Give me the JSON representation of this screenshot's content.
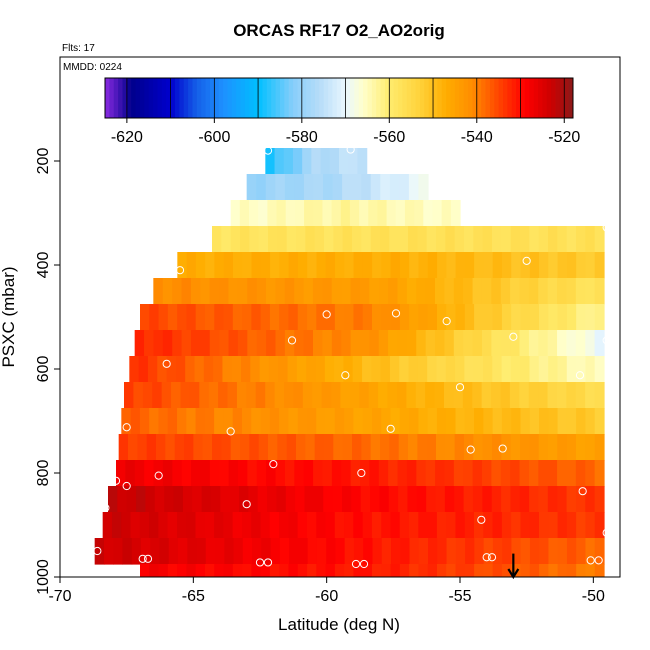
{
  "chart_data": {
    "type": "heatmap",
    "title": "ORCAS RF17 O2_AO2orig",
    "flights_label": "Flts: 17",
    "date_label": "MMDD: 0224",
    "xlabel": "Latitude (deg N)",
    "ylabel": "PSXC (mbar)",
    "xlim": [
      -70,
      -49
    ],
    "ylim": [
      1000,
      0
    ],
    "x_ticks": [
      -70,
      -65,
      -60,
      -55,
      -50
    ],
    "x_tick_labels": [
      "-70",
      "-65",
      "-60",
      "-55",
      "-50"
    ],
    "y_ticks": [
      200,
      400,
      600,
      800,
      1000
    ],
    "y_tick_labels": [
      "200",
      "400",
      "600",
      "800",
      "1000"
    ],
    "colorbar": {
      "range": [
        -625,
        -518
      ],
      "ticks": [
        -620,
        -600,
        -580,
        -560,
        -540,
        -520
      ],
      "tick_labels": [
        "-620",
        "-600",
        "-580",
        "-560",
        "-540",
        "-520"
      ],
      "stops": [
        {
          "v": -625,
          "c": "#8a2be2"
        },
        {
          "v": -619,
          "c": "#00008b"
        },
        {
          "v": -610,
          "c": "#0000cd"
        },
        {
          "v": -604,
          "c": "#1560e8"
        },
        {
          "v": -598,
          "c": "#1e90ff"
        },
        {
          "v": -590,
          "c": "#00bfff"
        },
        {
          "v": -582,
          "c": "#87cefa"
        },
        {
          "v": -576,
          "c": "#b6dcf8"
        },
        {
          "v": -570,
          "c": "#e9f7ff"
        },
        {
          "v": -566,
          "c": "#ffffcc"
        },
        {
          "v": -560,
          "c": "#ffec6e"
        },
        {
          "v": -553,
          "c": "#ffd23a"
        },
        {
          "v": -547,
          "c": "#ffad00"
        },
        {
          "v": -541,
          "c": "#ff8c00"
        },
        {
          "v": -535,
          "c": "#ff4500"
        },
        {
          "v": -529,
          "c": "#ff0000"
        },
        {
          "v": -523,
          "c": "#cc0000"
        },
        {
          "v": -518,
          "c": "#8b1a1a"
        }
      ]
    },
    "rows": [
      {
        "p_top": 175,
        "p_bot": 225,
        "x_start": -62.3,
        "x_end": -58.5,
        "v_start": -590,
        "v_mid": -577,
        "v_end": -574
      },
      {
        "p_top": 225,
        "p_bot": 275,
        "x_start": -63.0,
        "x_end": -56.2,
        "v_start": -580,
        "v_mid": -577,
        "v_end": -569
      },
      {
        "p_top": 275,
        "p_bot": 325,
        "x_start": -63.6,
        "x_end": -55.0,
        "v_start": -566,
        "v_mid": -563,
        "v_end": -566
      },
      {
        "p_top": 325,
        "p_bot": 375,
        "x_start": -64.3,
        "x_end": -49.6,
        "v_start": -558,
        "v_mid": -557,
        "v_end": -557
      },
      {
        "p_top": 375,
        "p_bot": 425,
        "x_start": -65.6,
        "x_end": -49.6,
        "v_start": -547,
        "v_mid": -547,
        "v_end": -552
      },
      {
        "p_top": 425,
        "p_bot": 475,
        "x_start": -66.5,
        "x_end": -49.6,
        "v_start": -541,
        "v_mid": -544,
        "v_end": -558
      },
      {
        "p_top": 475,
        "p_bot": 525,
        "x_start": -67.0,
        "x_end": -49.6,
        "v_start": -535,
        "v_mid": -540,
        "v_end": -563
      },
      {
        "p_top": 525,
        "p_bot": 575,
        "x_start": -67.2,
        "x_end": -49.6,
        "v_start": -532,
        "v_mid": -542,
        "v_end": -570
      },
      {
        "p_top": 575,
        "p_bot": 625,
        "x_start": -67.4,
        "x_end": -49.6,
        "v_start": -533,
        "v_mid": -549,
        "v_end": -566
      },
      {
        "p_top": 625,
        "p_bot": 675,
        "x_start": -67.6,
        "x_end": -49.6,
        "v_start": -534,
        "v_mid": -545,
        "v_end": -556
      },
      {
        "p_top": 675,
        "p_bot": 725,
        "x_start": -67.7,
        "x_end": -49.6,
        "v_start": -537,
        "v_mid": -545,
        "v_end": -552
      },
      {
        "p_top": 725,
        "p_bot": 775,
        "x_start": -67.8,
        "x_end": -49.6,
        "v_start": -534,
        "v_mid": -538,
        "v_end": -545
      },
      {
        "p_top": 775,
        "p_bot": 825,
        "x_start": -67.9,
        "x_end": -49.6,
        "v_start": -527,
        "v_mid": -531,
        "v_end": -538
      },
      {
        "p_top": 825,
        "p_bot": 875,
        "x_start": -68.2,
        "x_end": -49.6,
        "v_start": -522,
        "v_mid": -529,
        "v_end": -534
      },
      {
        "p_top": 875,
        "p_bot": 925,
        "x_start": -68.4,
        "x_end": -49.6,
        "v_start": -523,
        "v_mid": -530,
        "v_end": -534
      },
      {
        "p_top": 925,
        "p_bot": 975,
        "x_start": -68.7,
        "x_end": -49.6,
        "v_start": -523,
        "v_mid": -530,
        "v_end": -538
      },
      {
        "p_top": 975,
        "p_bot": 1000,
        "x_start": -67.0,
        "x_end": -49.6,
        "v_start": -528,
        "v_mid": -531,
        "v_end": -540
      }
    ],
    "points": [
      {
        "x": -62.2,
        "p": 180
      },
      {
        "x": -59.1,
        "p": 178
      },
      {
        "x": -56.0,
        "p": 178
      },
      {
        "x": -49.5,
        "p": 328
      },
      {
        "x": -52.5,
        "p": 392
      },
      {
        "x": -65.5,
        "p": 410
      },
      {
        "x": -67.0,
        "p": 465
      },
      {
        "x": -60.0,
        "p": 495
      },
      {
        "x": -57.4,
        "p": 493
      },
      {
        "x": -55.5,
        "p": 508
      },
      {
        "x": -61.3,
        "p": 545
      },
      {
        "x": -53.0,
        "p": 538
      },
      {
        "x": -49.5,
        "p": 545
      },
      {
        "x": -67.7,
        "p": 590
      },
      {
        "x": -66.0,
        "p": 590
      },
      {
        "x": -59.3,
        "p": 612
      },
      {
        "x": -55.0,
        "p": 635
      },
      {
        "x": -50.5,
        "p": 612
      },
      {
        "x": -67.5,
        "p": 712
      },
      {
        "x": -63.6,
        "p": 720
      },
      {
        "x": -57.6,
        "p": 715
      },
      {
        "x": -54.6,
        "p": 755
      },
      {
        "x": -53.4,
        "p": 753
      },
      {
        "x": -62.0,
        "p": 783
      },
      {
        "x": -66.3,
        "p": 805
      },
      {
        "x": -58.7,
        "p": 800
      },
      {
        "x": -67.9,
        "p": 815
      },
      {
        "x": -67.5,
        "p": 825
      },
      {
        "x": -50.4,
        "p": 835
      },
      {
        "x": -68.3,
        "p": 867
      },
      {
        "x": -63.0,
        "p": 860
      },
      {
        "x": -54.2,
        "p": 890
      },
      {
        "x": -49.5,
        "p": 915
      },
      {
        "x": -68.6,
        "p": 950
      },
      {
        "x": -66.9,
        "p": 965
      },
      {
        "x": -66.7,
        "p": 965
      },
      {
        "x": -62.5,
        "p": 972
      },
      {
        "x": -62.2,
        "p": 972
      },
      {
        "x": -58.9,
        "p": 975
      },
      {
        "x": -58.6,
        "p": 975
      },
      {
        "x": -54.0,
        "p": 962
      },
      {
        "x": -53.8,
        "p": 962
      },
      {
        "x": -50.1,
        "p": 968
      },
      {
        "x": -49.8,
        "p": 968
      }
    ],
    "marker": {
      "x": -53.0,
      "p_top": 955,
      "p_bot": 1000
    }
  }
}
